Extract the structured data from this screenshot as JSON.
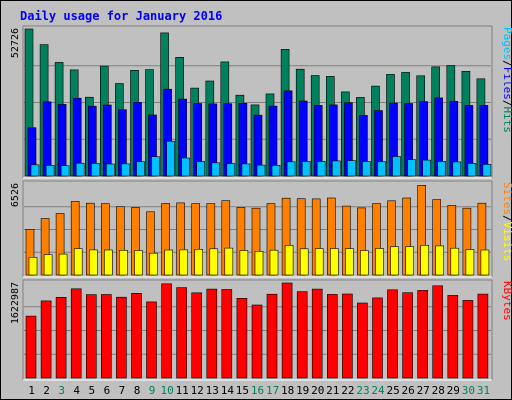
{
  "chart_data": {
    "type": "bar",
    "title": "Daily usage for January 2016",
    "categories": [
      "1",
      "2",
      "3",
      "4",
      "5",
      "6",
      "7",
      "8",
      "9",
      "10",
      "11",
      "12",
      "13",
      "14",
      "15",
      "16",
      "17",
      "18",
      "19",
      "20",
      "21",
      "22",
      "23",
      "24",
      "25",
      "26",
      "27",
      "28",
      "29",
      "30",
      "31"
    ],
    "weekend_days": [
      "3",
      "9",
      "10",
      "16",
      "17",
      "23",
      "24",
      "30",
      "31"
    ],
    "colors": {
      "background": "#C0C0C0",
      "title": "#0000FF",
      "hits": "#00805C",
      "files": "#0000FF",
      "pages": "#00C0FF",
      "visits": "#FFFF00",
      "sites": "#FF8000",
      "kbytes": "#FF0000",
      "weekday_label": "#000000",
      "weekend_label": "#00805C"
    },
    "panels": [
      {
        "id": "hits-files-pages",
        "ymax_label": "52726",
        "ymax": 52726,
        "legend": [
          {
            "text": "Pages",
            "color": "#00C0FF"
          },
          {
            "text": "/",
            "color": "#000000"
          },
          {
            "text": "Files",
            "color": "#0000FF"
          },
          {
            "text": "/",
            "color": "#000000"
          },
          {
            "text": "Hits",
            "color": "#00805C"
          }
        ],
        "series": [
          {
            "name": "Hits",
            "color": "#00805C",
            "values": [
              52726,
              47130,
              40730,
              38050,
              28260,
              39410,
              33170,
              37930,
              38150,
              51320,
              42570,
              31520,
              34070,
              40940,
              28990,
              25500,
              29440,
              45440,
              38290,
              36040,
              35740,
              30170,
              28190,
              32240,
              36430,
              37160,
              35950,
              39140,
              39650,
              37560,
              34880
            ]
          },
          {
            "name": "Files",
            "color": "#0000FF",
            "values": [
              17340,
              26610,
              25690,
              27900,
              25020,
              25450,
              23770,
              26430,
              21870,
              31120,
              27570,
              26010,
              25870,
              25950,
              26070,
              21800,
              25060,
              30550,
              26900,
              25320,
              25490,
              26300,
              21730,
              23500,
              26150,
              26020,
              26690,
              28000,
              26790,
              25340,
              25310
            ]
          },
          {
            "name": "Pages",
            "color": "#00C0FF",
            "values": [
              4010,
              3800,
              3690,
              4590,
              4530,
              4290,
              4390,
              5180,
              6910,
              12470,
              6460,
              5210,
              4750,
              4450,
              4350,
              3910,
              3800,
              5090,
              5220,
              5240,
              5400,
              5530,
              5210,
              5140,
              6980,
              5830,
              5700,
              5220,
              5040,
              4530,
              4160
            ]
          }
        ]
      },
      {
        "id": "visits-sites",
        "ymax_label": "6526",
        "ymax": 6526,
        "legend": [
          {
            "text": "Sites",
            "color": "#FF8000"
          },
          {
            "text": "/",
            "color": "#000000"
          },
          {
            "text": "Visits",
            "color": "#FFFF00"
          }
        ],
        "series": [
          {
            "name": "Sites",
            "color": "#FF8000",
            "values": [
              3280,
              4050,
              4410,
              5280,
              5150,
              5120,
              4900,
              4840,
              4530,
              5130,
              5170,
              5120,
              5120,
              5330,
              4850,
              4790,
              5120,
              5510,
              5470,
              5460,
              5520,
              4940,
              4810,
              5120,
              5320,
              5520,
              6430,
              5410,
              4990,
              4790,
              5150
            ]
          },
          {
            "name": "Visits",
            "color": "#FFFF00",
            "values": [
              1270,
              1460,
              1500,
              1890,
              1800,
              1790,
              1770,
              1760,
              1560,
              1790,
              1800,
              1840,
              1880,
              1930,
              1760,
              1700,
              1780,
              2120,
              1880,
              1900,
              1900,
              1890,
              1760,
              1900,
              2040,
              2040,
              2120,
              2090,
              1920,
              1820,
              1790
            ]
          }
        ]
      },
      {
        "id": "kbytes",
        "ymax_label": "1622987",
        "ymax": 1622987,
        "legend": [
          {
            "text": "KBytes",
            "color": "#FF0000"
          }
        ],
        "series": [
          {
            "name": "KBytes",
            "color": "#FF0000",
            "values": [
              1058000,
              1317000,
              1378000,
              1524000,
              1424000,
              1427000,
              1381000,
              1447000,
              1300000,
              1610000,
              1545000,
              1456000,
              1518000,
              1512000,
              1361000,
              1247000,
              1431000,
              1622987,
              1476000,
              1518000,
              1429000,
              1435000,
              1281000,
              1369000,
              1507000,
              1457000,
              1496000,
              1575000,
              1411000,
              1325000,
              1433000
            ]
          }
        ]
      }
    ]
  }
}
